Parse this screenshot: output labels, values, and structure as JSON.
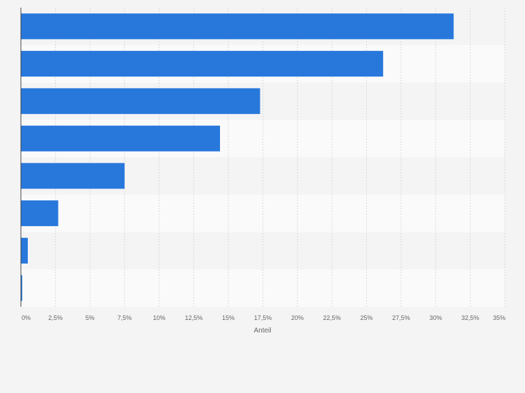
{
  "chart_data": {
    "type": "bar",
    "orientation": "horizontal",
    "categories": [
      "",
      "",
      "",
      "",
      "",
      "",
      "",
      ""
    ],
    "values": [
      31.3,
      26.2,
      17.3,
      14.4,
      7.5,
      2.7,
      0.5,
      0.1
    ],
    "xlabel": "Anteil",
    "xlim": [
      0,
      35
    ],
    "xticks": [
      0,
      2.5,
      5,
      7.5,
      10,
      12.5,
      15,
      17.5,
      20,
      22.5,
      25,
      27.5,
      30,
      32.5,
      35
    ],
    "xtick_labels": [
      "0%",
      "2,5%",
      "5%",
      "7,5%",
      "10%",
      "12,5%",
      "15%",
      "17,5%",
      "20%",
      "22,5%",
      "25%",
      "27,5%",
      "30%",
      "32,5%",
      "35%"
    ],
    "grid": true,
    "legend": "none",
    "bar_color": "#2878dc",
    "band_colors": [
      "#f4f4f4",
      "#fafafa"
    ],
    "background": "#f4f4f4"
  }
}
